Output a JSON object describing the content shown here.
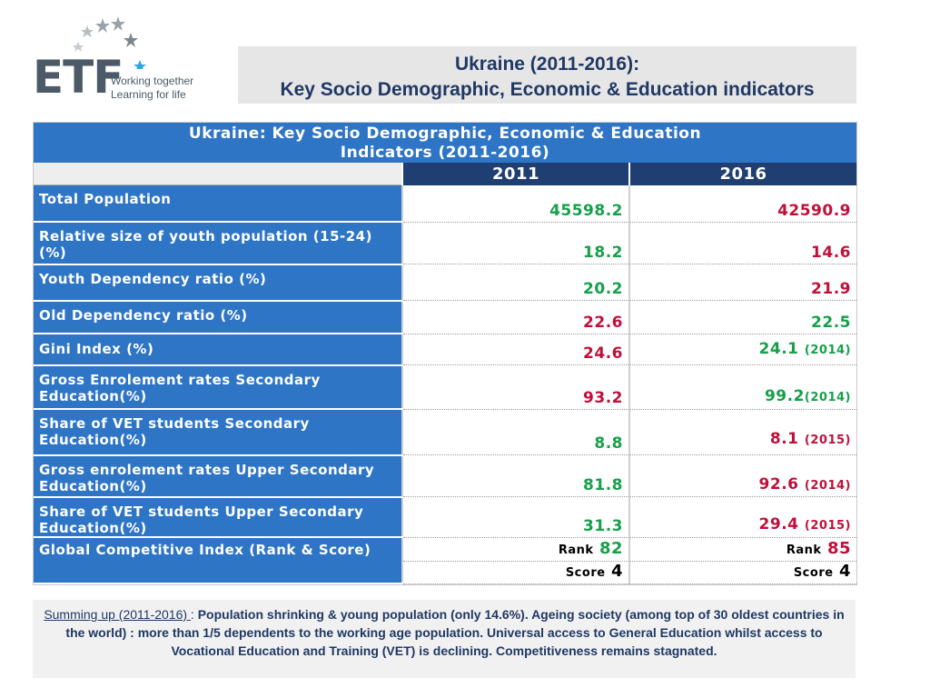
{
  "logo": {
    "text": "ETF",
    "tagline_1": "Working together",
    "tagline_2": "Learning for life"
  },
  "header": {
    "line1": "Ukraine (2011-2016):",
    "line2": "Key Socio Demographic, Economic & Education indicators"
  },
  "table": {
    "title_line1": "Ukraine: Key Socio Demographic, Economic & Education",
    "title_line2": "Indicators (2011-2016)",
    "year_2011": "2011",
    "year_2016": "2016",
    "rows": [
      {
        "label": "Total Population",
        "v2011": "45598.2",
        "v2016": "42590.9",
        "note2016": ""
      },
      {
        "label": "Relative size of youth population (15-24)(%)",
        "v2011": "18.2",
        "v2016": "14.6",
        "note2016": ""
      },
      {
        "label": "Youth Dependency ratio (%)",
        "v2011": "20.2",
        "v2016": "21.9",
        "note2016": ""
      },
      {
        "label": "Old Dependency ratio (%)",
        "v2011": "22.6",
        "v2016": "22.5",
        "note2016": ""
      },
      {
        "label": "Gini Index (%)",
        "v2011": "24.6",
        "v2016": "24.1",
        "note2016": "(2014)"
      },
      {
        "label": "Gross Enrolement rates Secondary Education(%)",
        "v2011": "93.2",
        "v2016": "99.2",
        "note2016": "(2014)"
      },
      {
        "label": "Share of VET students Secondary Education(%)",
        "v2011": "8.8",
        "v2016": "8.1",
        "note2016": "(2015)"
      },
      {
        "label": "Gross enrolement rates Upper Secondary Education(%)",
        "v2011": "81.8",
        "v2016": "92.6",
        "note2016": "(2014)"
      },
      {
        "label": "Share of VET students  Upper Secondary Education(%)",
        "v2011": "31.3",
        "v2016": "29.4",
        "note2016": "(2015)"
      }
    ],
    "gci": {
      "label": "Global Competitive Index (Rank & Score)",
      "rank_label": "Rank",
      "score_label": "Score",
      "rank2011": "82",
      "rank2016": "85",
      "score2011": "4",
      "score2016": "4"
    }
  },
  "summary": {
    "lead": "Summing up (2011-2016) ",
    "colon": ": ",
    "text": "Population shrinking & young population (only 14.6%). Ageing society (among top of 30 oldest countries in the world) : more than 1/5 dependents to the working age population. Universal access to General Education whilst access to Vocational Education and Training (VET) is declining. Competitiveness remains stagnated."
  },
  "colors": {
    "label_blue": "#2e75c6",
    "dark_blue": "#1f3f73",
    "green": "#16a04a",
    "red": "#c0103a",
    "title_navy": "#1f3864"
  }
}
